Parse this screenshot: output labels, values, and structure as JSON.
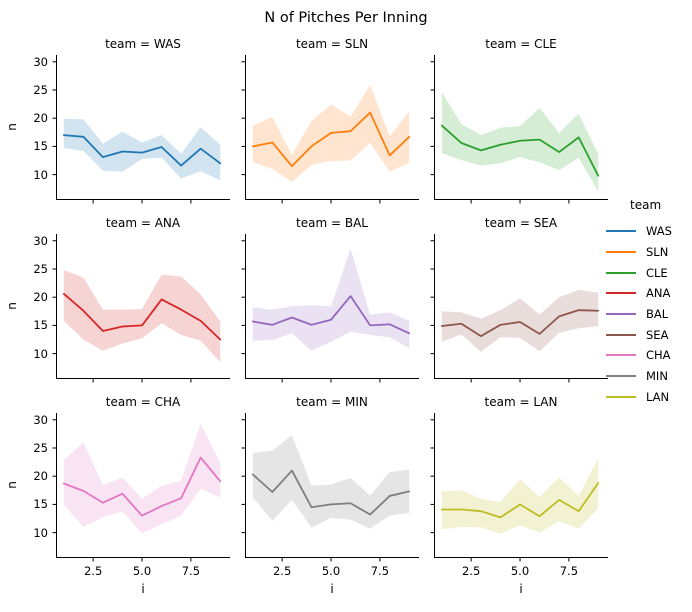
{
  "chart_data": {
    "type": "line",
    "title": "N of Pitches Per Inning",
    "facet_grid": "3x3",
    "x": [
      1,
      2,
      3,
      4,
      5,
      6,
      7,
      8,
      9
    ],
    "xlabel": "i",
    "ylabel": "n",
    "xtick_labels": [
      "2.5",
      "5.0",
      "7.5"
    ],
    "xtick_values": [
      2.5,
      5.0,
      7.5
    ],
    "ytick_values": [
      10,
      15,
      20,
      25,
      30
    ],
    "xlim": [
      0.6,
      9.5
    ],
    "ylim": [
      5.5,
      31.2
    ],
    "grid": false,
    "legend_title": "team",
    "legend_position": "right",
    "band_style": "confidence band, fill alpha 0.2",
    "series": [
      {
        "name": "WAS",
        "facet_title": "team = WAS",
        "color": "#1f77b4",
        "values": [
          17.0,
          16.7,
          13.1,
          14.1,
          13.9,
          14.9,
          11.6,
          14.6,
          12.0
        ],
        "lower": [
          14.7,
          14.2,
          10.7,
          10.5,
          12.8,
          13.0,
          9.3,
          10.6,
          9.0
        ],
        "upper": [
          19.9,
          19.8,
          15.5,
          17.6,
          15.7,
          17.0,
          13.7,
          18.4,
          15.3
        ]
      },
      {
        "name": "SLN",
        "facet_title": "team = SLN",
        "color": "#ff7f0e",
        "values": [
          15.0,
          15.7,
          11.5,
          15.0,
          17.4,
          17.7,
          21.0,
          13.4,
          16.7
        ],
        "lower": [
          12.2,
          11.0,
          8.7,
          11.7,
          12.4,
          12.5,
          15.6,
          10.5,
          12.1
        ],
        "upper": [
          18.7,
          20.2,
          13.5,
          19.5,
          22.4,
          20.3,
          25.9,
          16.8,
          21.2
        ]
      },
      {
        "name": "CLE",
        "facet_title": "team = CLE",
        "color": "#2ca02c",
        "values": [
          18.7,
          15.6,
          14.3,
          15.3,
          16.0,
          16.2,
          14.0,
          16.6,
          9.8
        ],
        "lower": [
          13.8,
          12.6,
          11.6,
          12.0,
          13.1,
          12.2,
          10.8,
          13.0,
          7.0
        ],
        "upper": [
          24.6,
          19.0,
          17.0,
          18.3,
          18.6,
          21.8,
          17.4,
          20.8,
          13.6
        ]
      },
      {
        "name": "ANA",
        "facet_title": "team = ANA",
        "color": "#d62728",
        "values": [
          20.6,
          17.6,
          14.0,
          14.8,
          15.0,
          19.6,
          17.8,
          15.8,
          12.5
        ],
        "lower": [
          15.8,
          12.5,
          10.5,
          11.8,
          12.7,
          15.4,
          13.3,
          12.3,
          8.5
        ],
        "upper": [
          24.8,
          23.5,
          17.8,
          17.8,
          17.9,
          24.0,
          23.7,
          20.5,
          15.7
        ]
      },
      {
        "name": "BAL",
        "facet_title": "team = BAL",
        "color": "#9467bd",
        "values": [
          15.7,
          15.1,
          16.4,
          15.1,
          16.0,
          20.2,
          15.0,
          15.2,
          13.6
        ],
        "lower": [
          12.3,
          12.4,
          13.6,
          10.5,
          12.1,
          13.9,
          13.3,
          12.9,
          11.0
        ],
        "upper": [
          18.2,
          17.8,
          18.4,
          18.6,
          18.4,
          28.6,
          16.9,
          17.3,
          15.8
        ]
      },
      {
        "name": "SEA",
        "facet_title": "team = SEA",
        "color": "#8c564b",
        "values": [
          14.9,
          15.3,
          13.1,
          15.1,
          15.6,
          13.5,
          16.6,
          17.7,
          17.6
        ],
        "lower": [
          12.1,
          13.4,
          10.3,
          12.9,
          12.8,
          10.4,
          13.7,
          14.5,
          14.9
        ],
        "upper": [
          17.5,
          17.3,
          16.2,
          17.7,
          19.8,
          16.9,
          20.0,
          21.3,
          20.8
        ]
      },
      {
        "name": "CHA",
        "facet_title": "team = CHA",
        "color": "#e377c2",
        "values": [
          18.7,
          17.4,
          15.3,
          16.9,
          13.0,
          14.7,
          16.1,
          23.3,
          19.1
        ],
        "lower": [
          15.0,
          11.0,
          12.7,
          13.8,
          9.9,
          11.5,
          13.0,
          17.8,
          16.2
        ],
        "upper": [
          22.8,
          26.0,
          18.4,
          19.8,
          16.0,
          18.3,
          19.2,
          29.3,
          22.3
        ]
      },
      {
        "name": "MIN",
        "facet_title": "team = MIN",
        "color": "#7f7f7f",
        "values": [
          20.3,
          17.2,
          21.0,
          14.5,
          15.0,
          15.2,
          13.2,
          16.5,
          17.3
        ],
        "lower": [
          16.3,
          12.1,
          15.8,
          10.9,
          12.6,
          12.3,
          10.7,
          13.0,
          13.5
        ],
        "upper": [
          24.1,
          24.5,
          27.3,
          18.3,
          18.5,
          19.7,
          16.6,
          20.7,
          21.2
        ]
      },
      {
        "name": "LAN",
        "facet_title": "team = LAN",
        "color": "#bcbd22",
        "values": [
          14.1,
          14.1,
          13.8,
          12.7,
          15.0,
          12.9,
          15.8,
          13.8,
          18.8
        ],
        "lower": [
          10.6,
          11.0,
          10.9,
          9.8,
          11.3,
          10.0,
          12.0,
          10.7,
          14.3
        ],
        "upper": [
          17.3,
          17.5,
          16.0,
          15.4,
          19.5,
          16.3,
          19.8,
          16.5,
          23.2
        ]
      }
    ]
  }
}
